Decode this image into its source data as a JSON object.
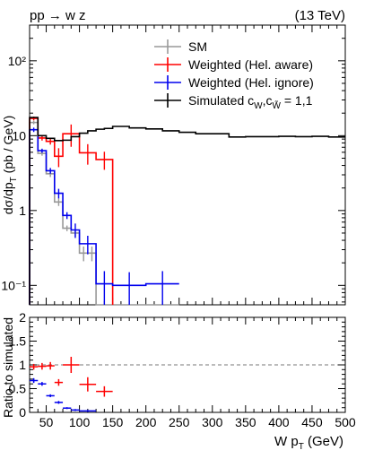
{
  "chart_data": {
    "type": "line",
    "process_label": "pp → w z",
    "energy_label": "(13 TeV)",
    "xlabel_main": "W p",
    "xlabel_sub": "T",
    "xlabel_unit": " (GeV)",
    "ylabel_top_main": "dσ/dp",
    "ylabel_top_sub": "T",
    "ylabel_top_unit": " (pb / GeV)",
    "ylabel_bottom": "Ratio to simulated",
    "x_range": [
      25,
      500
    ],
    "y_top_range": [
      0.055,
      300
    ],
    "y_top_scale": "log",
    "y_bottom_range": [
      0,
      2
    ],
    "x_ticks": [
      50,
      100,
      150,
      200,
      250,
      300,
      350,
      400,
      450,
      500
    ],
    "y_top_ticks": [
      {
        "value": 0.1,
        "label": "10⁻¹"
      },
      {
        "value": 1,
        "label": "1"
      },
      {
        "value": 10,
        "label": "10"
      },
      {
        "value": 100,
        "label": "10²"
      }
    ],
    "y_bottom_ticks": [
      0,
      0.5,
      1,
      1.5,
      2
    ],
    "ratio_reference_line": 1,
    "legend_position": "top-right",
    "legend": [
      {
        "key": "sm",
        "label": "SM",
        "color": "#999999"
      },
      {
        "key": "aware",
        "label": "Weighted (Hel. aware)",
        "color": "#ff0000"
      },
      {
        "key": "ignore",
        "label": "Weighted (Hel. ignore)",
        "color": "#0000ee"
      },
      {
        "key": "sim",
        "label": "Simulated  c",
        "label_sub1": "W",
        "label_mid": ",c",
        "label_sub2": "W̃",
        "label_end": " = 1,1",
        "color": "#000000"
      }
    ],
    "series": [
      {
        "key": "sim",
        "name": "Simulated",
        "color": "#000000",
        "edges": [
          25,
          37.5,
          50,
          62.5,
          75,
          87.5,
          100,
          112.5,
          125,
          137.5,
          150,
          175,
          200,
          225,
          250,
          275,
          300,
          325,
          350,
          375,
          400,
          425,
          450,
          475,
          500
        ],
        "values": [
          17.5,
          10,
          9.2,
          8.6,
          8.7,
          9.7,
          10.8,
          11.6,
          12.2,
          12.5,
          13.3,
          12.7,
          12.3,
          11.6,
          11.1,
          10.6,
          10.6,
          9.6,
          9.7,
          9.7,
          9.8,
          9.7,
          9.8,
          9.6
        ]
      },
      {
        "key": "sm",
        "name": "SM",
        "color": "#999999",
        "edges": [
          25,
          37.5,
          50,
          62.5,
          75,
          87.5,
          100,
          112.5,
          125,
          137.5,
          150,
          175,
          200,
          225,
          250
        ],
        "values": [
          15,
          5.8,
          3.1,
          1.3,
          0.58,
          0.5,
          0.27,
          0.27,
          0.055,
          0.055,
          0.055,
          0.055,
          0.055,
          0.055
        ],
        "errors": [
          0.8,
          0.4,
          0.3,
          0.15,
          0.05,
          0.05,
          0.06,
          0.06,
          0,
          0,
          0,
          0,
          0,
          0
        ]
      },
      {
        "key": "aware",
        "name": "Weighted (Hel. aware)",
        "color": "#ff0000",
        "edges": [
          25,
          37.5,
          50,
          62.5,
          75,
          100,
          125,
          150
        ],
        "values": [
          17,
          9.3,
          8.4,
          5.3,
          10.6,
          5.9,
          4.8
        ],
        "errors": [
          1.0,
          0.7,
          0.8,
          1.5,
          3.5,
          1.8,
          1.3
        ]
      },
      {
        "key": "ignore",
        "name": "Weighted (Hel. ignore)",
        "color": "#0000ee",
        "edges": [
          25,
          37.5,
          50,
          62.5,
          75,
          87.5,
          100,
          125,
          150,
          200,
          250
        ],
        "values": [
          12,
          6.3,
          3.4,
          1.7,
          0.86,
          0.55,
          0.36,
          0.105,
          0.1,
          0.105
        ],
        "errors": [
          0.8,
          0.4,
          0.3,
          0.25,
          0.09,
          0.12,
          0.1,
          0.05,
          0.05,
          0.05
        ]
      }
    ],
    "ratio_series": [
      {
        "key": "aware",
        "color": "#ff0000",
        "x": [
          31.25,
          43.75,
          56.25,
          68.75,
          87.5,
          112.5,
          137.5
        ],
        "x_err": [
          6.25,
          6.25,
          6.25,
          6.25,
          12.5,
          12.5,
          12.5
        ],
        "y": [
          0.96,
          0.97,
          0.98,
          0.63,
          1.0,
          0.59,
          0.44
        ],
        "y_err": [
          0.06,
          0.07,
          0.08,
          0.07,
          0.17,
          0.15,
          0.11
        ]
      },
      {
        "key": "ignore",
        "color": "#0000ee",
        "x": [
          31.25,
          43.75,
          56.25,
          68.75,
          81.25,
          93.75,
          112.5
        ],
        "x_err": [
          6.25,
          6.25,
          6.25,
          6.25,
          6.25,
          6.25,
          12.5
        ],
        "y": [
          0.67,
          0.6,
          0.35,
          0.21,
          0.09,
          0.05,
          0.03
        ],
        "y_err": [
          0.05,
          0.04,
          0.03,
          0.03,
          0.02,
          0.02,
          0.02
        ]
      }
    ]
  }
}
